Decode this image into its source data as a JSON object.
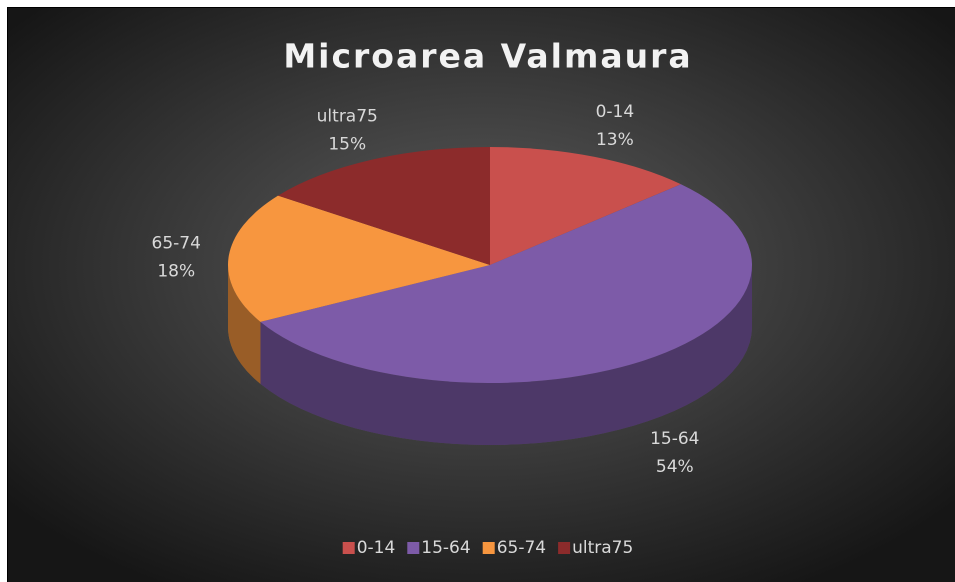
{
  "chart_data": {
    "type": "pie",
    "title": "Microarea Valmaura",
    "categories": [
      "0-14",
      "15-64",
      "65-74",
      "ultra75"
    ],
    "values": [
      13,
      54,
      18,
      15
    ],
    "value_labels": [
      "13%",
      "54%",
      "18%",
      "15%"
    ],
    "colors": [
      "#c9504d",
      "#7d5ba8",
      "#f7963f",
      "#8c2b2b"
    ],
    "legend": "bottom"
  }
}
